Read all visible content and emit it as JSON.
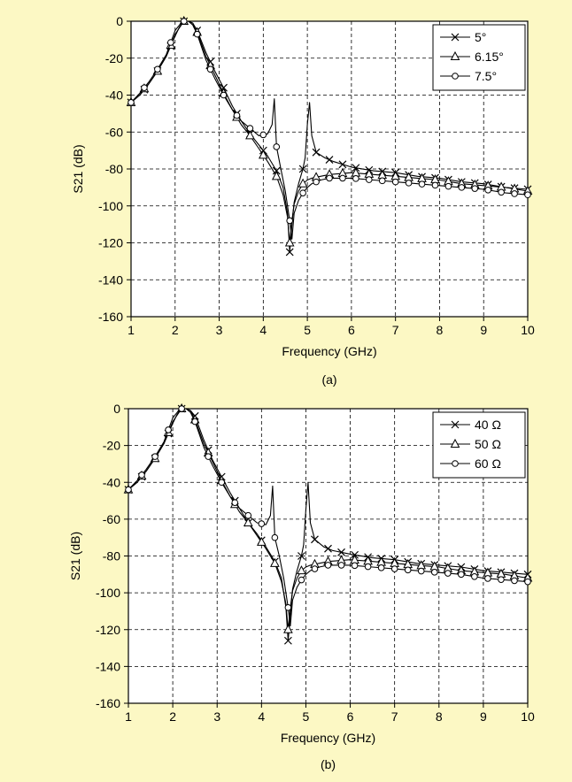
{
  "background_color": "#fcf8c4",
  "chart_data": [
    {
      "type": "line",
      "caption": "(a)",
      "xlabel": "Frequency (GHz)",
      "ylabel": "S21 (dB)",
      "xlim": [
        1,
        10
      ],
      "ylim": [
        -160,
        0
      ],
      "xticks": [
        1,
        2,
        3,
        4,
        5,
        6,
        7,
        8,
        9,
        10
      ],
      "yticks": [
        0,
        -20,
        -40,
        -60,
        -80,
        -100,
        -120,
        -140,
        -160
      ],
      "grid": true,
      "legend_position": "top-right",
      "series": [
        {
          "name": "5°",
          "marker": "x",
          "x": [
            1.0,
            1.2,
            1.4,
            1.6,
            1.8,
            2.0,
            2.1,
            2.2,
            2.3,
            2.4,
            2.5,
            2.7,
            2.9,
            3.1,
            3.3,
            3.5,
            3.7,
            3.9,
            4.1,
            4.3,
            4.45,
            4.55,
            4.6,
            4.65,
            4.7,
            4.8,
            4.9,
            4.95,
            5.0,
            5.05,
            5.1,
            5.2,
            5.4,
            5.6,
            6.0,
            6.5,
            7.0,
            7.5,
            8.0,
            8.5,
            9.0,
            9.5,
            10.0
          ],
          "y": [
            -44,
            -40,
            -34,
            -27,
            -19,
            -8,
            -3,
            0,
            0,
            -1,
            -5,
            -17,
            -27,
            -36,
            -46,
            -54,
            -61,
            -67,
            -73,
            -81,
            -90,
            -104,
            -125,
            -110,
            -98,
            -88,
            -80,
            -74,
            -56,
            -44,
            -62,
            -71,
            -74,
            -76,
            -79,
            -81,
            -82,
            -84,
            -85,
            -87,
            -88,
            -90,
            -91
          ]
        },
        {
          "name": "6.15°",
          "marker": "triangle",
          "x": [
            1.0,
            1.2,
            1.4,
            1.6,
            1.8,
            2.0,
            2.2,
            2.3,
            2.4,
            2.5,
            2.7,
            2.9,
            3.1,
            3.3,
            3.5,
            3.7,
            3.9,
            4.1,
            4.3,
            4.45,
            4.55,
            4.6,
            4.65,
            4.7,
            4.8,
            4.9,
            5.0,
            5.1,
            5.3,
            5.5,
            6.0,
            6.5,
            7.0,
            7.5,
            8.0,
            8.5,
            9.0,
            9.5,
            10.0
          ],
          "y": [
            -44,
            -39,
            -34,
            -27,
            -19,
            -7,
            0,
            0,
            -1,
            -6,
            -19,
            -29,
            -39,
            -48,
            -56,
            -62,
            -69,
            -76,
            -84,
            -94,
            -106,
            -120,
            -108,
            -99,
            -92,
            -88,
            -86,
            -85,
            -84,
            -83,
            -82,
            -83,
            -84,
            -85,
            -86,
            -88,
            -89,
            -90,
            -92
          ]
        },
        {
          "name": "7.5°",
          "marker": "circle",
          "x": [
            1.0,
            1.2,
            1.4,
            1.6,
            1.8,
            2.0,
            2.1,
            2.2,
            2.3,
            2.4,
            2.5,
            2.7,
            2.9,
            3.1,
            3.3,
            3.5,
            3.7,
            3.9,
            4.1,
            4.2,
            4.25,
            4.3,
            4.4,
            4.5,
            4.6,
            4.65,
            4.7,
            4.8,
            4.9,
            5.0,
            5.1,
            5.3,
            5.5,
            6.0,
            6.5,
            7.0,
            7.5,
            8.0,
            8.5,
            9.0,
            9.5,
            10.0
          ],
          "y": [
            -44,
            -39,
            -33,
            -26,
            -18,
            -5,
            -2,
            0,
            0,
            -2,
            -7,
            -21,
            -31,
            -40,
            -48,
            -54,
            -58,
            -62,
            -61,
            -56,
            -42,
            -68,
            -80,
            -92,
            -108,
            -118,
            -104,
            -97,
            -93,
            -90,
            -88,
            -86,
            -85,
            -85,
            -86,
            -87,
            -88,
            -89,
            -90,
            -91,
            -93,
            -94
          ]
        }
      ]
    },
    {
      "type": "line",
      "caption": "(b)",
      "xlabel": "Frequency (GHz)",
      "ylabel": "S21 (dB)",
      "xlim": [
        1,
        10
      ],
      "ylim": [
        -160,
        0
      ],
      "xticks": [
        1,
        2,
        3,
        4,
        5,
        6,
        7,
        8,
        9,
        10
      ],
      "yticks": [
        0,
        -20,
        -40,
        -60,
        -80,
        -100,
        -120,
        -140,
        -160
      ],
      "grid": true,
      "legend_position": "top-right",
      "series": [
        {
          "name": "40 Ω",
          "marker": "x",
          "x": [
            1.0,
            1.2,
            1.4,
            1.6,
            1.8,
            2.0,
            2.1,
            2.2,
            2.3,
            2.4,
            2.5,
            2.7,
            2.9,
            3.1,
            3.3,
            3.5,
            3.7,
            3.9,
            4.1,
            4.3,
            4.45,
            4.55,
            4.6,
            4.65,
            4.7,
            4.8,
            4.9,
            4.95,
            5.0,
            5.05,
            5.1,
            5.2,
            5.4,
            5.6,
            6.0,
            6.5,
            7.0,
            7.5,
            8.0,
            8.5,
            9.0,
            9.5,
            10.0
          ],
          "y": [
            -44,
            -40,
            -34,
            -27,
            -19,
            -8,
            -3,
            0,
            0,
            -1,
            -4,
            -17,
            -28,
            -37,
            -46,
            -54,
            -62,
            -68,
            -75,
            -83,
            -92,
            -108,
            -126,
            -112,
            -98,
            -88,
            -80,
            -74,
            -55,
            -40,
            -62,
            -71,
            -75,
            -77,
            -79,
            -81,
            -82,
            -84,
            -85,
            -86,
            -88,
            -89,
            -90
          ]
        },
        {
          "name": "50 Ω",
          "marker": "triangle",
          "x": [
            1.0,
            1.2,
            1.4,
            1.6,
            1.8,
            2.0,
            2.2,
            2.3,
            2.4,
            2.5,
            2.7,
            2.9,
            3.1,
            3.3,
            3.5,
            3.7,
            3.9,
            4.1,
            4.3,
            4.45,
            4.55,
            4.6,
            4.65,
            4.7,
            4.8,
            4.9,
            5.0,
            5.1,
            5.3,
            5.5,
            6.0,
            6.5,
            7.0,
            7.5,
            8.0,
            8.5,
            9.0,
            9.5,
            10.0
          ],
          "y": [
            -44,
            -39,
            -34,
            -27,
            -19,
            -7,
            0,
            0,
            -1,
            -6,
            -19,
            -29,
            -39,
            -48,
            -56,
            -62,
            -69,
            -76,
            -84,
            -94,
            -106,
            -120,
            -108,
            -99,
            -92,
            -88,
            -86,
            -85,
            -84,
            -83,
            -82,
            -83,
            -84,
            -85,
            -86,
            -88,
            -89,
            -90,
            -92
          ]
        },
        {
          "name": "60 Ω",
          "marker": "circle",
          "x": [
            1.0,
            1.2,
            1.4,
            1.6,
            1.8,
            2.0,
            2.1,
            2.2,
            2.3,
            2.4,
            2.5,
            2.7,
            2.9,
            3.1,
            3.3,
            3.5,
            3.7,
            3.9,
            4.1,
            4.2,
            4.25,
            4.3,
            4.4,
            4.5,
            4.6,
            4.65,
            4.7,
            4.8,
            4.9,
            5.0,
            5.1,
            5.3,
            5.5,
            6.0,
            6.5,
            7.0,
            7.5,
            8.0,
            8.5,
            9.0,
            9.5,
            10.0
          ],
          "y": [
            -44,
            -39,
            -33,
            -26,
            -18,
            -5,
            -2,
            0,
            0,
            -2,
            -7,
            -21,
            -31,
            -40,
            -48,
            -54,
            -58,
            -62,
            -63,
            -58,
            -42,
            -70,
            -80,
            -92,
            -108,
            -118,
            -104,
            -97,
            -93,
            -90,
            -88,
            -86,
            -85,
            -85,
            -86,
            -87,
            -88,
            -89,
            -90,
            -92,
            -93,
            -94
          ]
        }
      ]
    }
  ]
}
